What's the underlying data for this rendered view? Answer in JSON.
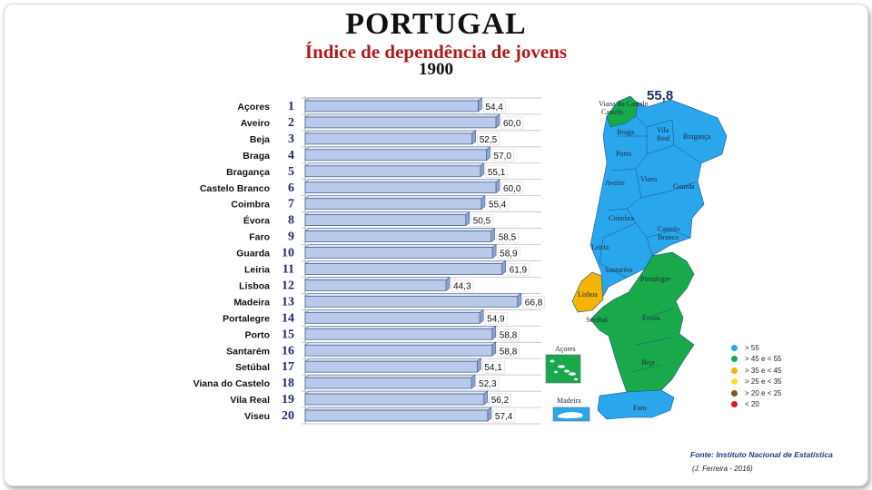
{
  "header": {
    "title": "PORTUGAL",
    "subtitle": "Índice de dependência de jovens",
    "year": "1900"
  },
  "chart_data": {
    "type": "bar",
    "orientation": "horizontal",
    "categories": [
      "Açores",
      "Aveiro",
      "Beja",
      "Braga",
      "Bragança",
      "Castelo Branco",
      "Coimbra",
      "Évora",
      "Faro",
      "Guarda",
      "Leiria",
      "Lisboa",
      "Madeira",
      "Portalegre",
      "Porto",
      "Santarém",
      "Setúbal",
      "Viana do Castelo",
      "Vila Real",
      "Viseu"
    ],
    "ranks": [
      "1",
      "2",
      "3",
      "4",
      "5",
      "6",
      "7",
      "8",
      "9",
      "10",
      "11",
      "12",
      "13",
      "14",
      "15",
      "16",
      "17",
      "18",
      "19",
      "20"
    ],
    "values": [
      54.4,
      60.0,
      52.5,
      57.0,
      55.1,
      60.0,
      55.4,
      50.5,
      58.5,
      58.9,
      61.9,
      44.3,
      66.8,
      54.9,
      58.8,
      58.8,
      54.1,
      52.3,
      56.2,
      57.4
    ],
    "value_labels": [
      "54,4",
      "60,0",
      "52,5",
      "57,0",
      "55,1",
      "60,0",
      "55,4",
      "50,5",
      "58,5",
      "58,9",
      "61,9",
      "44,3",
      "66,8",
      "54,9",
      "58,8",
      "58,8",
      "54,1",
      "52,3",
      "56,2",
      "57,4"
    ],
    "bar_color": "#b9c9ea",
    "bar_border": "#4a6592",
    "grid": true
  },
  "map": {
    "national_value": "55,8",
    "districts": [
      "Viana do Castelo",
      "Braga",
      "Vila Real",
      "Bragança",
      "Porto",
      "Aveiro",
      "Viseu",
      "Guarda",
      "Coimbra",
      "Castelo Branco",
      "Leiria",
      "Santarém",
      "Portalegre",
      "Lisboa",
      "Setúbal",
      "Évora",
      "Beja",
      "Faro"
    ],
    "islands": [
      "Açores",
      "Madeira"
    ],
    "colors": {
      "blue": "#2aa7ec",
      "green": "#1aa94a",
      "orange": "#f4b400",
      "sea": "#2aa7ec"
    }
  },
  "legend": [
    {
      "label": "> 55",
      "color": "#2aa7ec"
    },
    {
      "label": "> 45 e < 55",
      "color": "#1aa94a"
    },
    {
      "label": "> 35 e < 45",
      "color": "#f4b400"
    },
    {
      "label": "> 25 e < 35",
      "color": "#f5e11e"
    },
    {
      "label": "> 20  e < 25",
      "color": "#7a5a16"
    },
    {
      "label": "< 20",
      "color": "#e01515"
    }
  ],
  "footer": {
    "source": "Fonte: Instituto Nacional de Estatística",
    "author": "(J. Ferreira - 2016)"
  }
}
